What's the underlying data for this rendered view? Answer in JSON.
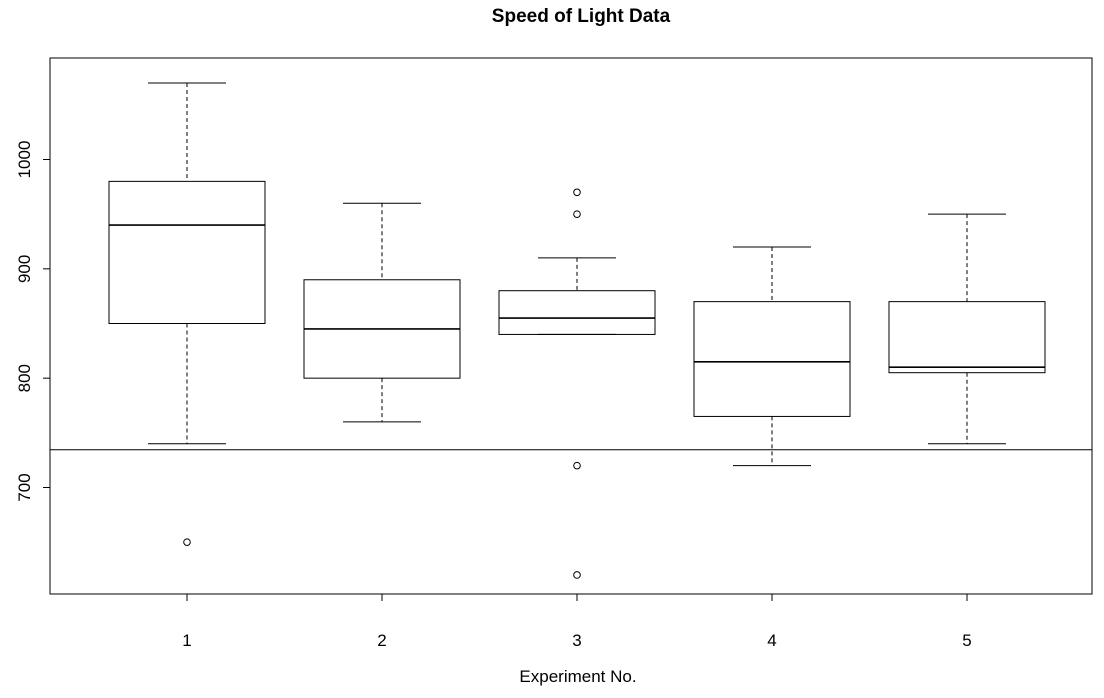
{
  "chart_data": {
    "type": "boxplot",
    "title": "Speed of Light Data",
    "xlabel": "Experiment No.",
    "ylabel": "",
    "categories": [
      "1",
      "2",
      "3",
      "4",
      "5"
    ],
    "ylim": [
      600,
      1085
    ],
    "yticks": [
      700,
      800,
      900,
      1000
    ],
    "boxes": [
      {
        "category": "1",
        "whisker_low": 740,
        "q1": 850,
        "median": 940,
        "q3": 980,
        "whisker_high": 1070,
        "outliers": [
          650
        ]
      },
      {
        "category": "2",
        "whisker_low": 760,
        "q1": 800,
        "median": 845,
        "q3": 890,
        "whisker_high": 960,
        "outliers": []
      },
      {
        "category": "3",
        "whisker_low": 840,
        "q1": 840,
        "median": 855,
        "q3": 880,
        "whisker_high": 910,
        "outliers": [
          620,
          720,
          950,
          970
        ]
      },
      {
        "category": "4",
        "whisker_low": 720,
        "q1": 765,
        "median": 815,
        "q3": 870,
        "whisker_high": 920,
        "outliers": []
      },
      {
        "category": "5",
        "whisker_low": 740,
        "q1": 805,
        "median": 810,
        "q3": 870,
        "whisker_high": 950,
        "outliers": []
      }
    ],
    "reference_line": {
      "y": 734.5
    },
    "grid": false
  }
}
